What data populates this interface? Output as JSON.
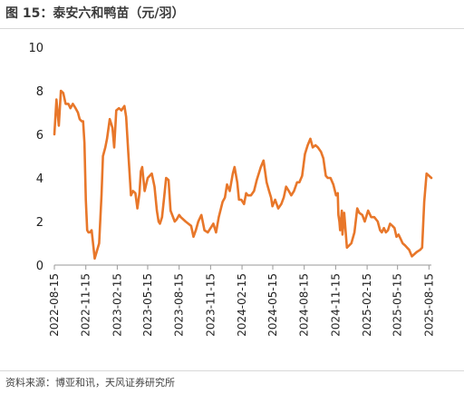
{
  "figure": {
    "title": "图 15：泰安六和鸭苗（元/羽）",
    "source": "资料来源：博亚和讯，天风证券研究所"
  },
  "chart_data": {
    "type": "line",
    "title": "图 15：泰安六和鸭苗（元/羽）",
    "xlabel": "",
    "ylabel": "",
    "ylim": [
      0,
      10
    ],
    "yticks": [
      0,
      2,
      4,
      6,
      8,
      10
    ],
    "xlim": [
      "2022-08-15",
      "2025-08-22"
    ],
    "xticks": [
      "2022-08-15",
      "2022-11-15",
      "2023-02-15",
      "2023-05-15",
      "2023-08-15",
      "2023-11-15",
      "2024-02-15",
      "2024-05-15",
      "2024-08-15",
      "2024-11-15",
      "2025-02-15",
      "2025-05-15",
      "2025-08-15"
    ],
    "grid": false,
    "legend": "none",
    "colors": {
      "line": "#E8772A",
      "axis": "#999999"
    },
    "series": [
      {
        "x": [
          "2022-08-15",
          "2022-08-21",
          "2022-08-28",
          "2022-09-03",
          "2022-09-10",
          "2022-09-17",
          "2022-09-25",
          "2022-10-01",
          "2022-10-08",
          "2022-10-16",
          "2022-10-23",
          "2022-10-28",
          "2022-11-03",
          "2022-11-07",
          "2022-11-11",
          "2022-11-15",
          "2022-11-19",
          "2022-11-23",
          "2022-11-27",
          "2022-12-02",
          "2022-12-11",
          "2022-12-24",
          "2022-12-31",
          "2023-01-04",
          "2023-01-11",
          "2023-01-16",
          "2023-01-24",
          "2023-02-01",
          "2023-02-06",
          "2023-02-12",
          "2023-02-20",
          "2023-02-27",
          "2023-03-08",
          "2023-03-13",
          "2023-03-20",
          "2023-03-27",
          "2023-04-02",
          "2023-04-09",
          "2023-04-15",
          "2023-04-21",
          "2023-04-25",
          "2023-04-29",
          "2023-05-06",
          "2023-05-15",
          "2023-05-27",
          "2023-06-04",
          "2023-06-11",
          "2023-06-16",
          "2023-06-20",
          "2023-06-26",
          "2023-07-02",
          "2023-07-08",
          "2023-07-15",
          "2023-07-21",
          "2023-08-02",
          "2023-08-08",
          "2023-08-15",
          "2023-08-20",
          "2023-09-03",
          "2023-09-11",
          "2023-09-19",
          "2023-09-26",
          "2023-10-03",
          "2023-10-10",
          "2023-10-19",
          "2023-10-28",
          "2023-11-07",
          "2023-11-15",
          "2023-11-23",
          "2023-12-01",
          "2023-12-09",
          "2023-12-20",
          "2023-12-27",
          "2024-01-02",
          "2024-01-10",
          "2024-01-19",
          "2024-01-24",
          "2024-02-01",
          "2024-02-06",
          "2024-02-13",
          "2024-02-21",
          "2024-02-27",
          "2024-03-03",
          "2024-03-12",
          "2024-03-21",
          "2024-03-29",
          "2024-04-10",
          "2024-04-18",
          "2024-04-27",
          "2024-05-04",
          "2024-05-10",
          "2024-05-14",
          "2024-05-22",
          "2024-05-31",
          "2024-06-09",
          "2024-06-16",
          "2024-06-23",
          "2024-07-01",
          "2024-07-08",
          "2024-07-16",
          "2024-07-25",
          "2024-08-01",
          "2024-08-09",
          "2024-08-17",
          "2024-08-25",
          "2024-09-02",
          "2024-09-09",
          "2024-09-17",
          "2024-09-24",
          "2024-10-03",
          "2024-10-10",
          "2024-10-17",
          "2024-10-23",
          "2024-10-31",
          "2024-11-08",
          "2024-11-16",
          "2024-11-21",
          "2024-11-23",
          "2024-11-26",
          "2024-11-28",
          "2024-12-03",
          "2024-12-05",
          "2024-12-10",
          "2024-12-18",
          "2024-12-31",
          "2025-01-09",
          "2025-01-17",
          "2025-01-23",
          "2025-02-01",
          "2025-02-08",
          "2025-02-18",
          "2025-02-27",
          "2025-03-08",
          "2025-03-18",
          "2025-03-25",
          "2025-03-30",
          "2025-04-05",
          "2025-04-11",
          "2025-04-17",
          "2025-04-23",
          "2025-04-30",
          "2025-05-06",
          "2025-05-12",
          "2025-05-18",
          "2025-05-24",
          "2025-05-30",
          "2025-06-06",
          "2025-06-12",
          "2025-06-18",
          "2025-06-26",
          "2025-07-10",
          "2025-07-20",
          "2025-07-26",
          "2025-08-01",
          "2025-08-08",
          "2025-08-15",
          "2025-08-22"
        ],
        "values": [
          6.0,
          7.6,
          6.4,
          8.0,
          7.9,
          7.4,
          7.4,
          7.2,
          7.4,
          7.2,
          7.0,
          6.7,
          6.6,
          6.6,
          5.6,
          3.0,
          1.6,
          1.5,
          1.5,
          1.6,
          0.3,
          1.0,
          3.2,
          5.0,
          5.4,
          5.8,
          6.7,
          6.3,
          5.4,
          7.1,
          7.2,
          7.1,
          7.3,
          6.8,
          5.0,
          3.2,
          3.4,
          3.3,
          2.6,
          3.3,
          4.3,
          4.5,
          3.4,
          4.0,
          4.2,
          3.6,
          2.5,
          2.0,
          1.9,
          2.2,
          3.1,
          4.0,
          3.9,
          2.5,
          2.0,
          2.1,
          2.3,
          2.2,
          2.0,
          1.9,
          1.8,
          1.3,
          1.6,
          2.0,
          2.3,
          1.6,
          1.5,
          1.7,
          1.9,
          1.5,
          2.2,
          2.9,
          3.1,
          3.7,
          3.4,
          4.2,
          4.5,
          3.8,
          3.0,
          3.0,
          2.8,
          3.3,
          3.2,
          3.2,
          3.4,
          3.9,
          4.5,
          4.8,
          3.8,
          3.4,
          3.1,
          2.7,
          3.0,
          2.6,
          2.8,
          3.1,
          3.6,
          3.4,
          3.2,
          3.4,
          3.8,
          3.8,
          4.1,
          5.1,
          5.5,
          5.8,
          5.4,
          5.5,
          5.4,
          5.2,
          4.9,
          4.1,
          4.0,
          4.0,
          3.7,
          3.2,
          3.3,
          2.3,
          2.0,
          1.6,
          2.5,
          1.4,
          2.4,
          0.8,
          1.0,
          1.5,
          2.6,
          2.4,
          2.3,
          2.0,
          2.5,
          2.2,
          2.2,
          2.0,
          1.6,
          1.5,
          1.7,
          1.5,
          1.6,
          1.9,
          1.8,
          1.7,
          1.3,
          1.4,
          1.2,
          1.0,
          0.9,
          0.8,
          0.7,
          0.4,
          0.6,
          0.7,
          0.8,
          2.9,
          4.2,
          4.1,
          4.0
        ]
      }
    ]
  }
}
